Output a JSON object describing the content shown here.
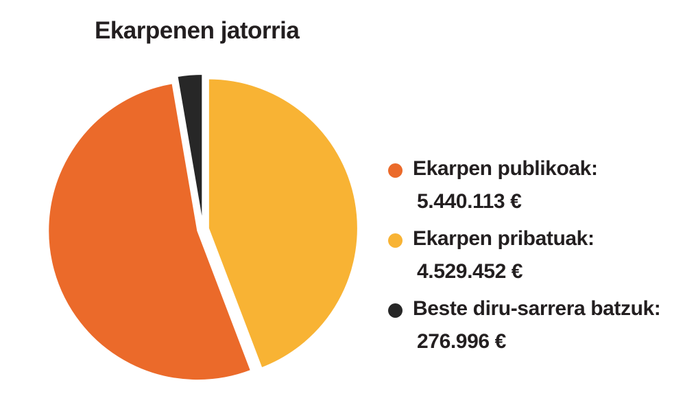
{
  "chart_data": {
    "type": "pie",
    "title": "Ekarpenen jatorria",
    "categories": [
      "Ekarpen publikoak:",
      "Ekarpen pribatuak:",
      "Beste diru-sarrera batzuk:"
    ],
    "values": [
      5440113,
      4529452,
      276996
    ],
    "value_labels": [
      "5.440.113 €",
      "4.529.452 €",
      "276.996 €"
    ],
    "colors": [
      "#eb6a2a",
      "#f8b334",
      "#272727"
    ],
    "exploded": true,
    "legend_position": "right"
  }
}
